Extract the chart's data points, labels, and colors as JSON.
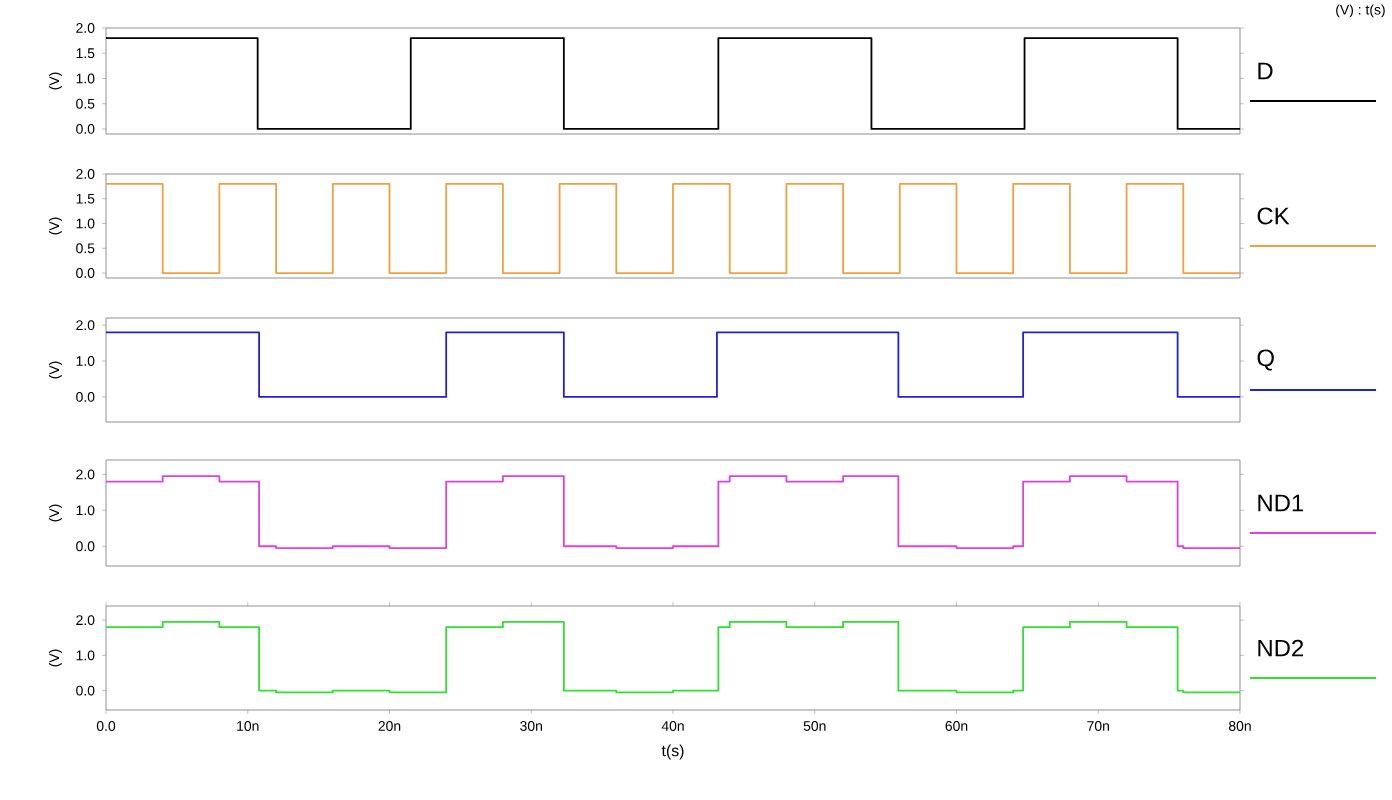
{
  "chart_data": [
    {
      "type": "step",
      "ylabel": "(V)",
      "annotations": [
        "(V) : t(s)"
      ],
      "xlim": [
        0,
        80
      ],
      "ylim": [
        -0.1,
        2.0
      ],
      "yticks": [
        {
          "value": 0,
          "label": "0.0"
        },
        {
          "value": 0.5,
          "label": "0.5"
        },
        {
          "value": 1,
          "label": "1.0"
        },
        {
          "value": 1.5,
          "label": "1.5"
        },
        {
          "value": 2,
          "label": "2.0"
        }
      ],
      "tick_labels": "y",
      "legend": "right",
      "series": [
        {
          "name": "D",
          "color": "#000000",
          "x": [
            0,
            10.7,
            21.5,
            32.3,
            43.2,
            54,
            64.8,
            75.6,
            80
          ],
          "values": [
            1.8,
            0,
            1.8,
            0,
            1.8,
            0,
            1.8,
            0,
            0
          ]
        }
      ]
    },
    {
      "type": "step",
      "ylabel": "(V)",
      "xlim": [
        0,
        80
      ],
      "ylim": [
        -0.1,
        2.0
      ],
      "yticks": [
        {
          "value": 0,
          "label": "0.0"
        },
        {
          "value": 0.5,
          "label": "0.5"
        },
        {
          "value": 1,
          "label": "1.0"
        },
        {
          "value": 1.5,
          "label": "1.5"
        },
        {
          "value": 2,
          "label": "2.0"
        }
      ],
      "tick_labels": "y",
      "legend": "right",
      "series": [
        {
          "name": "CK",
          "color": "#f0a040",
          "x": [
            0,
            4,
            8,
            12,
            16,
            20,
            24,
            28,
            32,
            36,
            40,
            44,
            48,
            52,
            56,
            60,
            64,
            68,
            72,
            76,
            80
          ],
          "values": [
            1.8,
            0,
            1.8,
            0,
            1.8,
            0,
            1.8,
            0,
            1.8,
            0,
            1.8,
            0,
            1.8,
            0,
            1.8,
            0,
            1.8,
            0,
            1.8,
            0,
            0
          ]
        }
      ]
    },
    {
      "type": "step",
      "ylabel": "(V)",
      "xlim": [
        0,
        80
      ],
      "ylim": [
        -0.7,
        2.2
      ],
      "yticks": [
        {
          "value": 0,
          "label": "0.0"
        },
        {
          "value": 1,
          "label": "1.0"
        },
        {
          "value": 2,
          "label": "2.0"
        }
      ],
      "tick_labels": "y",
      "legend": "right",
      "series": [
        {
          "name": "Q",
          "color": "#2020e0",
          "x": [
            0,
            10.8,
            24,
            32.3,
            43.1,
            55.9,
            64.7,
            75.6,
            80
          ],
          "values": [
            1.8,
            0,
            1.8,
            0,
            1.8,
            0,
            1.8,
            0,
            0
          ]
        }
      ]
    },
    {
      "type": "step",
      "ylabel": "(V)",
      "xlim": [
        0,
        80
      ],
      "ylim": [
        -0.55,
        2.4
      ],
      "yticks": [
        {
          "value": 0,
          "label": "0.0"
        },
        {
          "value": 1,
          "label": "1.0"
        },
        {
          "value": 2,
          "label": "2.0"
        }
      ],
      "tick_labels": "y",
      "legend": "right",
      "series": [
        {
          "name": "ND1",
          "color": "#e040e0",
          "x": [
            0,
            4,
            8,
            10.8,
            12,
            16,
            20,
            24,
            28,
            32.3,
            36,
            40,
            43.2,
            44,
            48,
            52,
            55.9,
            60,
            64,
            64.7,
            68,
            72,
            75.6,
            76,
            80
          ],
          "values": [
            1.8,
            1.95,
            1.8,
            0,
            -0.05,
            0,
            -0.05,
            1.8,
            1.95,
            0,
            -0.05,
            0,
            1.8,
            1.95,
            1.8,
            1.95,
            0,
            -0.05,
            0,
            1.8,
            1.95,
            1.8,
            0,
            -0.05,
            -0.05
          ]
        }
      ]
    },
    {
      "type": "step",
      "ylabel": "(V)",
      "xlabel": "t(s)",
      "xlim": [
        0,
        80
      ],
      "ylim": [
        -0.55,
        2.4
      ],
      "xticks": [
        {
          "value": 0,
          "label": "0.0"
        },
        {
          "value": 10,
          "label": "10n"
        },
        {
          "value": 20,
          "label": "20n"
        },
        {
          "value": 30,
          "label": "30n"
        },
        {
          "value": 40,
          "label": "40n"
        },
        {
          "value": 50,
          "label": "50n"
        },
        {
          "value": 60,
          "label": "60n"
        },
        {
          "value": 70,
          "label": "70n"
        },
        {
          "value": 80,
          "label": "80n"
        }
      ],
      "yticks": [
        {
          "value": 0,
          "label": "0.0"
        },
        {
          "value": 1,
          "label": "1.0"
        },
        {
          "value": 2,
          "label": "2.0"
        }
      ],
      "legend": "right",
      "series": [
        {
          "name": "ND2",
          "color": "#30e030",
          "x": [
            0,
            4,
            8,
            10.8,
            12,
            16,
            20,
            24,
            28,
            32.3,
            36,
            40,
            43.2,
            44,
            48,
            52,
            55.9,
            60,
            64,
            64.7,
            68,
            72,
            75.6,
            76,
            80
          ],
          "values": [
            1.8,
            1.95,
            1.8,
            0,
            -0.05,
            0,
            -0.05,
            1.8,
            1.95,
            0,
            -0.05,
            0,
            1.8,
            1.95,
            1.8,
            1.95,
            0,
            -0.05,
            0,
            1.8,
            1.95,
            1.8,
            0,
            -0.05,
            -0.05
          ]
        }
      ]
    }
  ]
}
